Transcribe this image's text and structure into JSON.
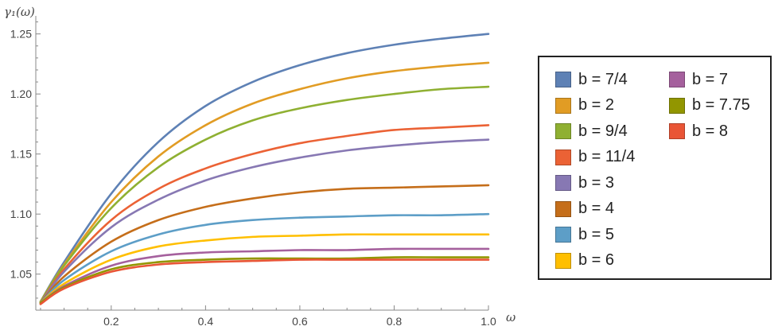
{
  "chart_data": {
    "type": "line",
    "xlabel": "ω",
    "ylabel": "γ₁(ω)",
    "xlim": [
      0.04,
      1.0
    ],
    "ylim": [
      1.02,
      1.265
    ],
    "x_ticks": [
      "0.2",
      "0.4",
      "0.6",
      "0.8",
      "1.0"
    ],
    "y_ticks": [
      "1.05",
      "1.10",
      "1.15",
      "1.20",
      "1.25"
    ],
    "grid": false,
    "legend_position": "right",
    "x": [
      0.05,
      0.1,
      0.2,
      0.3,
      0.4,
      0.5,
      0.6,
      0.7,
      0.8,
      0.9,
      1.0
    ],
    "series": [
      {
        "name": "b = 7/4",
        "color": "#5E81B5",
        "values": [
          1.027,
          1.06,
          1.117,
          1.16,
          1.19,
          1.21,
          1.224,
          1.234,
          1.241,
          1.246,
          1.25
        ]
      },
      {
        "name": "b = 2",
        "color": "#E19C24",
        "values": [
          1.027,
          1.058,
          1.11,
          1.148,
          1.174,
          1.192,
          1.204,
          1.213,
          1.219,
          1.223,
          1.226
        ]
      },
      {
        "name": "b = 9/4",
        "color": "#8FB032",
        "values": [
          1.027,
          1.057,
          1.105,
          1.139,
          1.162,
          1.178,
          1.188,
          1.195,
          1.2,
          1.204,
          1.206
        ]
      },
      {
        "name": "b = 11/4",
        "color": "#EB6235",
        "values": [
          1.026,
          1.054,
          1.095,
          1.121,
          1.138,
          1.15,
          1.159,
          1.165,
          1.17,
          1.172,
          1.174
        ]
      },
      {
        "name": "b = 3",
        "color": "#8778B3",
        "values": [
          1.026,
          1.052,
          1.089,
          1.112,
          1.128,
          1.139,
          1.147,
          1.153,
          1.157,
          1.16,
          1.162
        ]
      },
      {
        "name": "b = 4",
        "color": "#C56E1A",
        "values": [
          1.026,
          1.048,
          1.077,
          1.095,
          1.106,
          1.113,
          1.118,
          1.121,
          1.122,
          1.123,
          1.124
        ]
      },
      {
        "name": "b = 5",
        "color": "#5D9EC7",
        "values": [
          1.026,
          1.045,
          1.069,
          1.083,
          1.091,
          1.095,
          1.097,
          1.098,
          1.099,
          1.099,
          1.1
        ]
      },
      {
        "name": "b = 6",
        "color": "#FFBF00",
        "values": [
          1.026,
          1.042,
          1.062,
          1.073,
          1.078,
          1.081,
          1.082,
          1.083,
          1.083,
          1.083,
          1.083
        ]
      },
      {
        "name": "b = 7",
        "color": "#A5609D",
        "values": [
          1.026,
          1.04,
          1.057,
          1.065,
          1.068,
          1.069,
          1.07,
          1.07,
          1.071,
          1.071,
          1.071
        ]
      },
      {
        "name": "b = 7.75",
        "color": "#929600",
        "values": [
          1.026,
          1.039,
          1.054,
          1.06,
          1.062,
          1.063,
          1.063,
          1.063,
          1.064,
          1.064,
          1.064
        ]
      },
      {
        "name": "b = 8",
        "color": "#E95536",
        "values": [
          1.025,
          1.038,
          1.052,
          1.058,
          1.06,
          1.061,
          1.062,
          1.062,
          1.062,
          1.062,
          1.062
        ]
      }
    ]
  }
}
